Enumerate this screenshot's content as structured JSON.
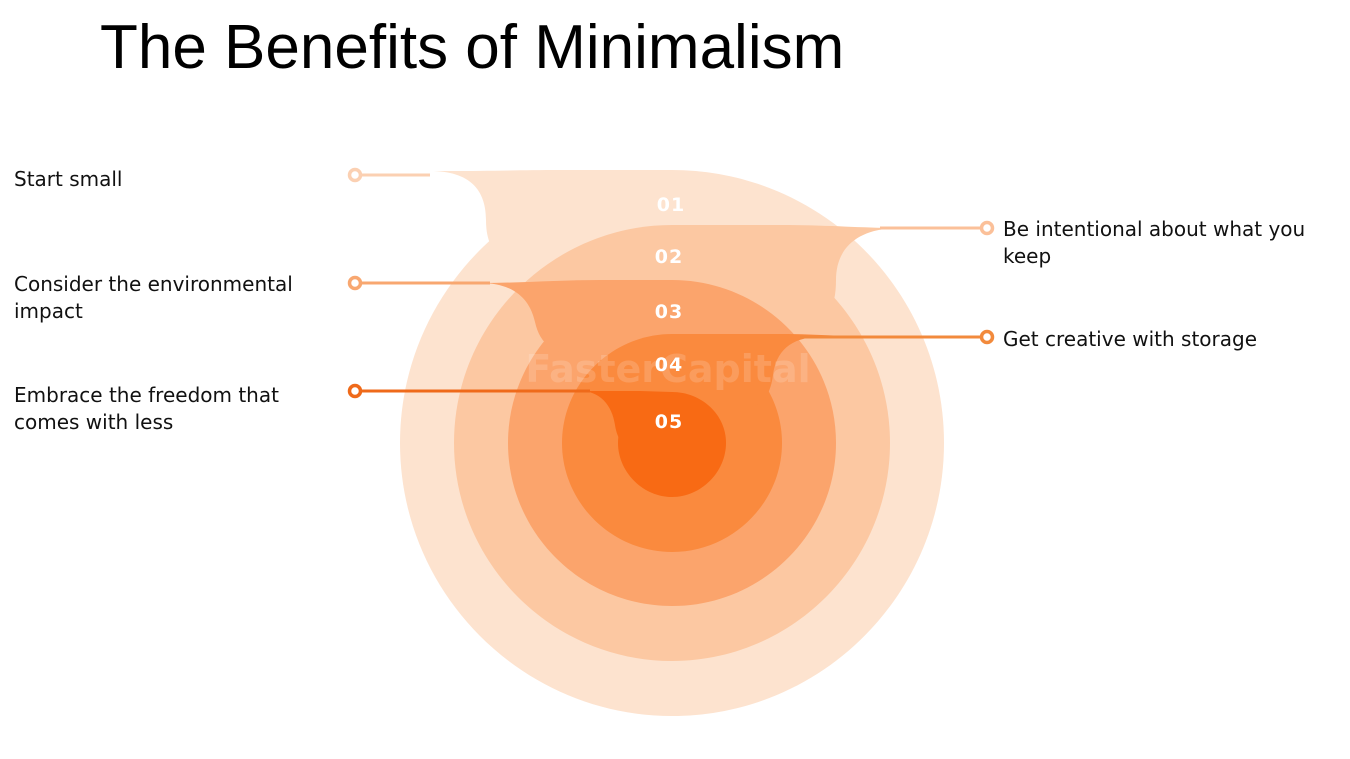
{
  "title": "The Benefits of Minimalism",
  "colors": {
    "ring_1": "#fde3cf",
    "ring_2": "#fcc8a2",
    "ring_3": "#fba46c",
    "ring_4": "#fa8a3e",
    "ring_5": "#f86a14",
    "marker_1": "#fbd0b2",
    "marker_2": "#fbc099",
    "marker_3": "#f8a770",
    "marker_4": "#f28a3c",
    "marker_5": "#ef6a1a"
  },
  "steps": [
    {
      "number": "01",
      "label": "Start small",
      "side": "left"
    },
    {
      "number": "02",
      "label": "Be intentional about what you keep",
      "side": "right"
    },
    {
      "number": "03",
      "label": "Consider the environmental impact",
      "side": "left"
    },
    {
      "number": "04",
      "label": "Get creative with storage",
      "side": "right"
    },
    {
      "number": "05",
      "label": "Embrace the freedom that comes with less",
      "side": "left"
    }
  ],
  "watermark": "FasterCapital"
}
